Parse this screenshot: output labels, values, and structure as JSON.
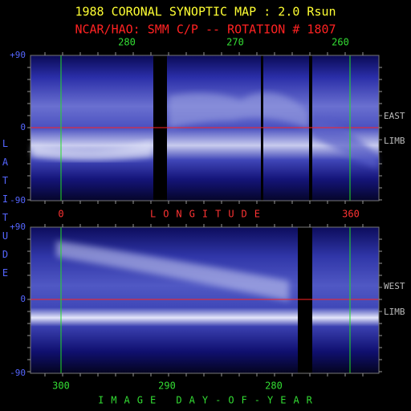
{
  "header": {
    "title": "1988 CORONAL SYNOPTIC MAP : 2.0 Rsun",
    "subtitle": "NCAR/HAO: SMM C/P -- ROTATION # 1807"
  },
  "latitude_label": "LATITUDE",
  "top_panel": {
    "top_labels": [
      "280",
      "270",
      "260"
    ],
    "left_labels": [
      "+90",
      "0",
      "-90"
    ],
    "side_labels": [
      "EAST",
      "LIMB"
    ]
  },
  "longitude_axis": {
    "start": "0",
    "label": "LONGITUDE",
    "end": "360"
  },
  "bottom_panel": {
    "left_labels": [
      "+90",
      "0",
      "-90"
    ],
    "side_labels": [
      "WEST",
      "LIMB"
    ],
    "bottom_labels": [
      "300",
      "290",
      "280"
    ]
  },
  "bottom_axis_label": "IMAGE DAY-OF-YEAR"
}
